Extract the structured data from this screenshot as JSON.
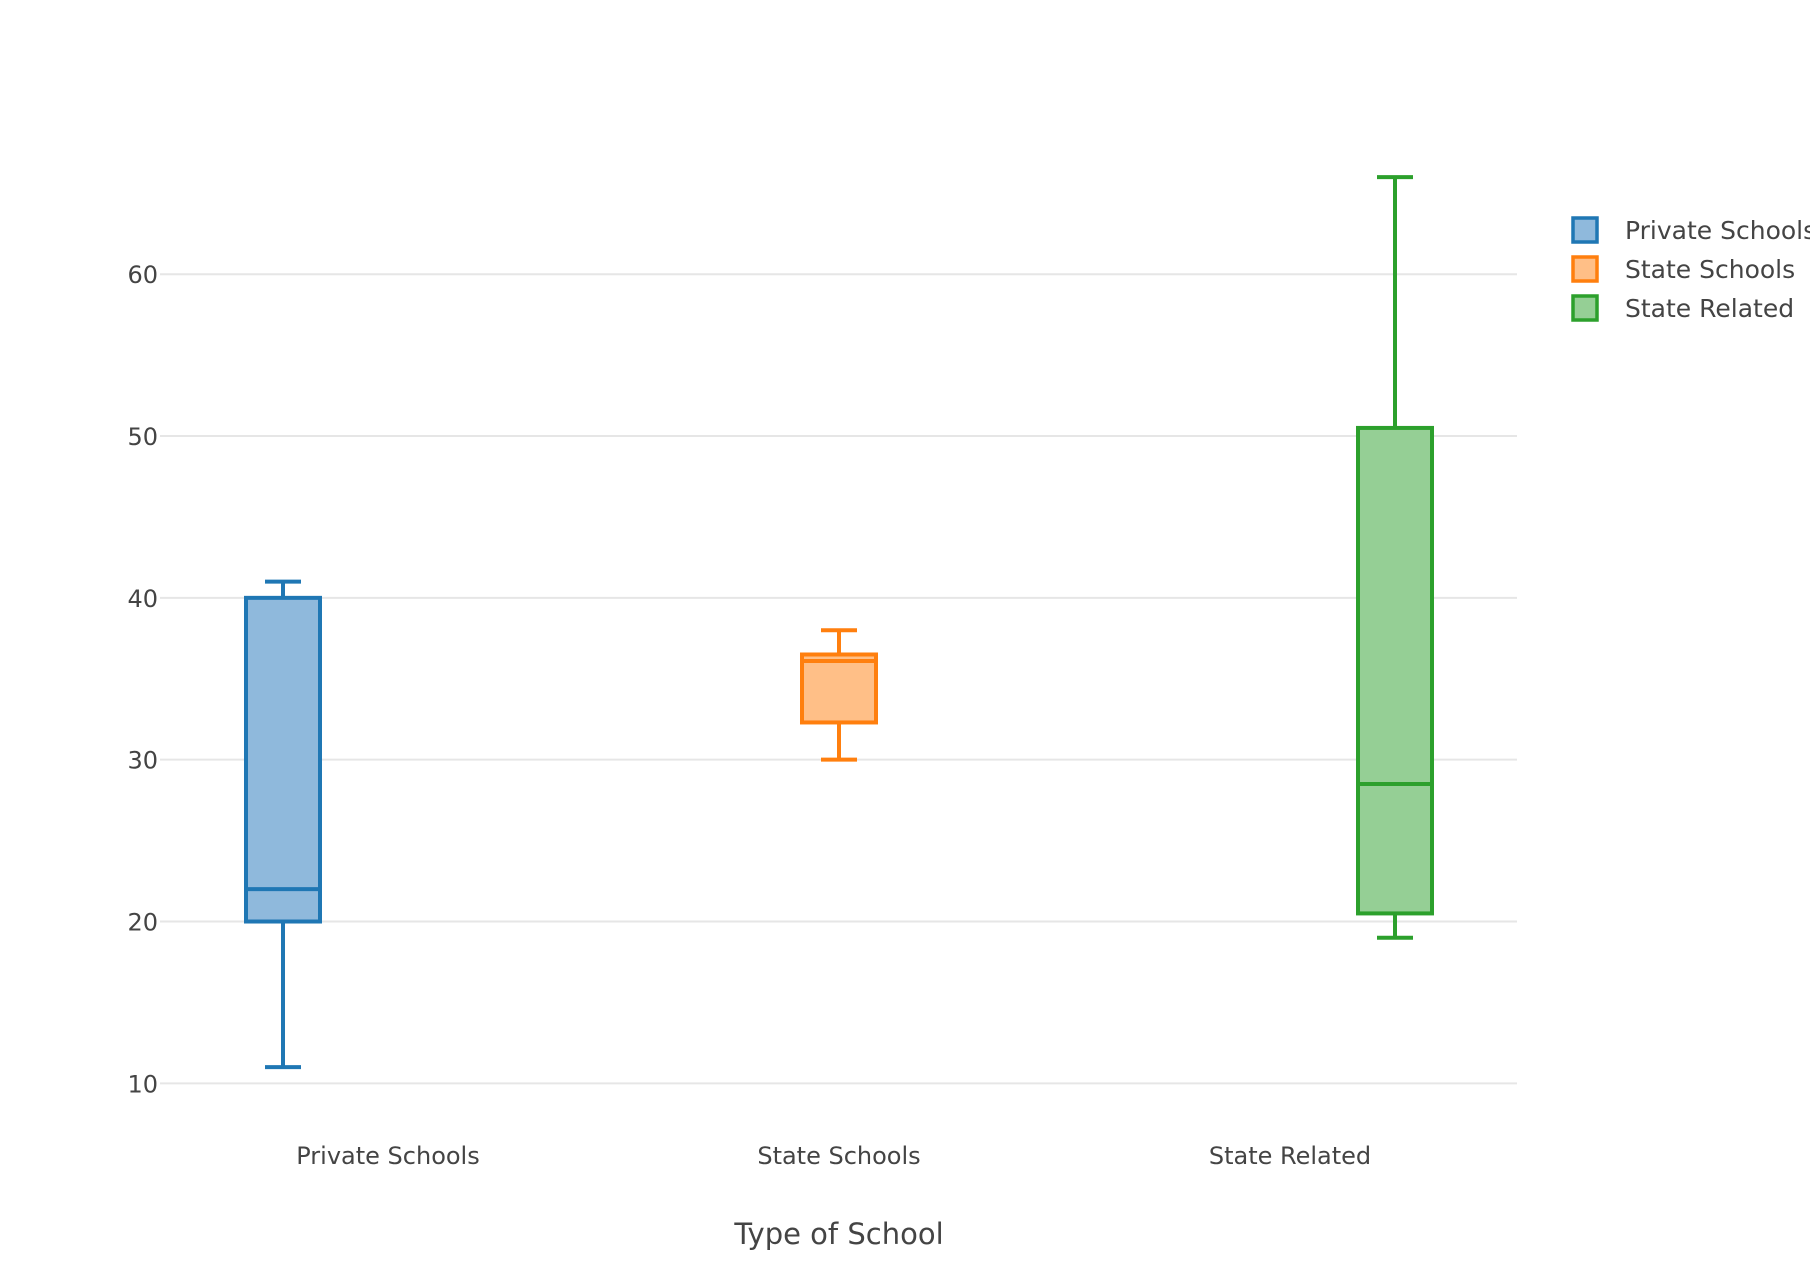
{
  "chart_data": {
    "type": "box",
    "title": "",
    "xlabel": "Type of School",
    "ylabel": "",
    "ylim": [
      8.6,
      72
    ],
    "yticks": [
      10,
      20,
      30,
      40,
      50,
      60
    ],
    "grid": true,
    "legend_position": "top-right",
    "categories": [
      "Private Schools",
      "State Schools",
      "State Related"
    ],
    "series": [
      {
        "name": "Private Schools",
        "category": "Private Schools",
        "color": "#1f77b4",
        "fill": "#8fb9dc",
        "min": 11,
        "q1": 20,
        "median": 22,
        "q3": 40,
        "max": 41
      },
      {
        "name": "State Schools",
        "category": "State Schools",
        "color": "#ff7f0e",
        "fill": "#ffbf87",
        "min": 30,
        "q1": 32.3,
        "median": 36.1,
        "q3": 36.5,
        "max": 38
      },
      {
        "name": "State Related",
        "category": "State Related",
        "color": "#2ca02c",
        "fill": "#95cf95",
        "min": 19,
        "q1": 20.5,
        "median": 28.5,
        "q3": 50.5,
        "max": 66
      }
    ]
  }
}
